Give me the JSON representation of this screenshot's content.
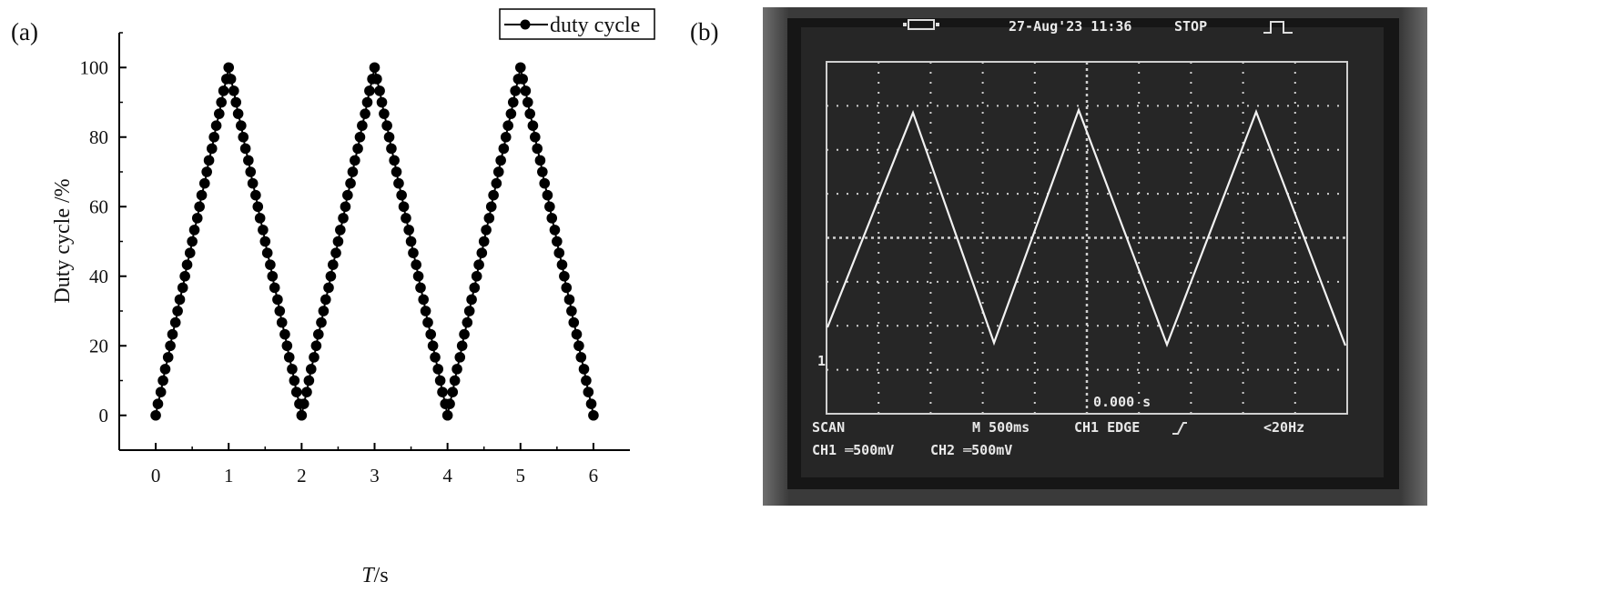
{
  "panels": {
    "a": "(a)",
    "b": "(b)"
  },
  "chart_data": {
    "type": "line",
    "markers": "filled-circle",
    "xlabel_italic": "T",
    "xlabel_unit": "/s",
    "ylabel": "Duty cycle  /%",
    "xlim": [
      -0.5,
      6.5
    ],
    "ylim": [
      -10,
      110
    ],
    "xticks": [
      "0",
      "1",
      "2",
      "3",
      "4",
      "5",
      "6"
    ],
    "yticks": [
      "0",
      "20",
      "40",
      "60",
      "80",
      "100"
    ],
    "grid": false,
    "legend": {
      "placement": "top-right",
      "entries": [
        "duty cycle"
      ]
    },
    "series": [
      {
        "name": "duty cycle",
        "color": "#000000",
        "x": [
          0,
          0.03,
          0.07,
          0.1,
          0.13,
          0.17,
          0.2,
          0.23,
          0.27,
          0.3,
          0.33,
          0.37,
          0.4,
          0.43,
          0.47,
          0.5,
          0.53,
          0.57,
          0.6,
          0.63,
          0.67,
          0.7,
          0.73,
          0.77,
          0.8,
          0.83,
          0.87,
          0.9,
          0.93,
          0.97,
          1,
          1.03,
          1.07,
          1.1,
          1.13,
          1.17,
          1.2,
          1.23,
          1.27,
          1.3,
          1.33,
          1.37,
          1.4,
          1.43,
          1.47,
          1.5,
          1.53,
          1.57,
          1.6,
          1.63,
          1.67,
          1.7,
          1.73,
          1.77,
          1.8,
          1.83,
          1.87,
          1.9,
          1.93,
          1.97,
          2,
          2.03,
          2.07,
          2.1,
          2.13,
          2.17,
          2.2,
          2.23,
          2.27,
          2.3,
          2.33,
          2.37,
          2.4,
          2.43,
          2.47,
          2.5,
          2.53,
          2.57,
          2.6,
          2.63,
          2.67,
          2.7,
          2.73,
          2.77,
          2.8,
          2.83,
          2.87,
          2.9,
          2.93,
          2.97,
          3,
          3.03,
          3.07,
          3.1,
          3.13,
          3.17,
          3.2,
          3.23,
          3.27,
          3.3,
          3.33,
          3.37,
          3.4,
          3.43,
          3.47,
          3.5,
          3.53,
          3.57,
          3.6,
          3.63,
          3.67,
          3.7,
          3.73,
          3.77,
          3.8,
          3.83,
          3.87,
          3.9,
          3.93,
          3.97,
          4,
          4.03,
          4.07,
          4.1,
          4.13,
          4.17,
          4.2,
          4.23,
          4.27,
          4.3,
          4.33,
          4.37,
          4.4,
          4.43,
          4.47,
          4.5,
          4.53,
          4.57,
          4.6,
          4.63,
          4.67,
          4.7,
          4.73,
          4.77,
          4.8,
          4.83,
          4.87,
          4.9,
          4.93,
          4.97,
          5,
          5.03,
          5.07,
          5.1,
          5.13,
          5.17,
          5.2,
          5.23,
          5.27,
          5.3,
          5.33,
          5.37,
          5.4,
          5.43,
          5.47,
          5.5,
          5.53,
          5.57,
          5.6,
          5.63,
          5.67,
          5.7,
          5.73,
          5.77,
          5.8,
          5.83,
          5.87,
          5.9,
          5.93,
          5.97,
          6
        ],
        "y": [
          0,
          3.3,
          6.7,
          10,
          13.3,
          16.7,
          20,
          23.3,
          26.7,
          30,
          33.3,
          36.7,
          40,
          43.3,
          46.7,
          50,
          53.3,
          56.7,
          60,
          63.3,
          66.7,
          70,
          73.3,
          76.7,
          80,
          83.3,
          86.7,
          90,
          93.3,
          96.7,
          100,
          96.7,
          93.3,
          90,
          86.7,
          83.3,
          80,
          76.7,
          73.3,
          70,
          66.7,
          63.3,
          60,
          56.7,
          53.3,
          50,
          46.7,
          43.3,
          40,
          36.7,
          33.3,
          30,
          26.7,
          23.3,
          20,
          16.7,
          13.3,
          10,
          6.7,
          3.3,
          0,
          3.3,
          6.7,
          10,
          13.3,
          16.7,
          20,
          23.3,
          26.7,
          30,
          33.3,
          36.7,
          40,
          43.3,
          46.7,
          50,
          53.3,
          56.7,
          60,
          63.3,
          66.7,
          70,
          73.3,
          76.7,
          80,
          83.3,
          86.7,
          90,
          93.3,
          96.7,
          100,
          96.7,
          93.3,
          90,
          86.7,
          83.3,
          80,
          76.7,
          73.3,
          70,
          66.7,
          63.3,
          60,
          56.7,
          53.3,
          50,
          46.7,
          43.3,
          40,
          36.7,
          33.3,
          30,
          26.7,
          23.3,
          20,
          16.7,
          13.3,
          10,
          6.7,
          3.3,
          0,
          3.3,
          6.7,
          10,
          13.3,
          16.7,
          20,
          23.3,
          26.7,
          30,
          33.3,
          36.7,
          40,
          43.3,
          46.7,
          50,
          53.3,
          56.7,
          60,
          63.3,
          66.7,
          70,
          73.3,
          76.7,
          80,
          83.3,
          86.7,
          90,
          93.3,
          96.7,
          100,
          96.7,
          93.3,
          90,
          86.7,
          83.3,
          80,
          76.7,
          73.3,
          70,
          66.7,
          63.3,
          60,
          56.7,
          53.3,
          50,
          46.7,
          43.3,
          40,
          36.7,
          33.3,
          30,
          26.7,
          23.3,
          20,
          16.7,
          13.3,
          10,
          6.7,
          3.3,
          0
        ]
      }
    ]
  },
  "oscilloscope": {
    "date_time": "27-Aug'23 11:36",
    "status": "STOP",
    "channel_marker": "1",
    "trigger_time": "0.000 s",
    "mode": "SCAN",
    "timebase": "M 500ms",
    "trigger": "CH1 EDGE",
    "frequency": "<20Hz",
    "ch1": "CH1 ═500mV",
    "ch2": "CH2 ═500mV",
    "icons": [
      "usb-connector-icon",
      "trigger-slope-icon",
      "pulse-waveform-icon"
    ]
  }
}
